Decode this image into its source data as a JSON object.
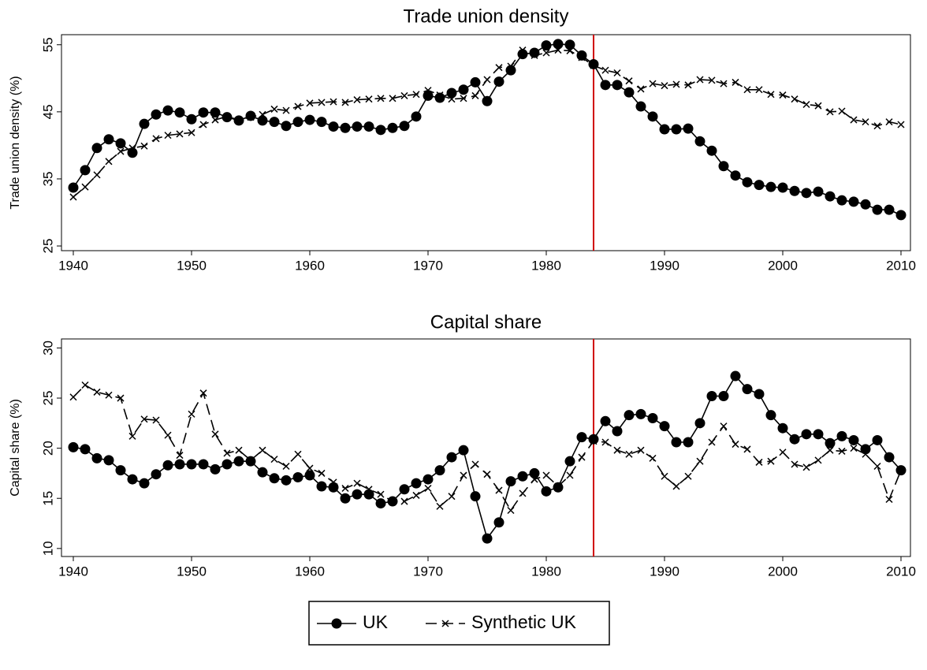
{
  "chart_data": [
    {
      "type": "line",
      "title": "Trade union density",
      "y_label": "Trade union density (%)",
      "x": [
        1940,
        1941,
        1942,
        1943,
        1944,
        1945,
        1946,
        1947,
        1948,
        1949,
        1950,
        1951,
        1952,
        1953,
        1954,
        1955,
        1956,
        1957,
        1958,
        1959,
        1960,
        1961,
        1962,
        1963,
        1964,
        1965,
        1966,
        1967,
        1968,
        1969,
        1970,
        1971,
        1972,
        1973,
        1974,
        1975,
        1976,
        1977,
        1978,
        1979,
        1980,
        1981,
        1982,
        1983,
        1984,
        1985,
        1986,
        1987,
        1988,
        1989,
        1990,
        1991,
        1992,
        1993,
        1994,
        1995,
        1996,
        1997,
        1998,
        1999,
        2000,
        2001,
        2002,
        2003,
        2004,
        2005,
        2006,
        2007,
        2008,
        2009,
        2010
      ],
      "series": [
        {
          "name": "UK",
          "color": "#000000",
          "marker": "circle",
          "dash": "solid",
          "values": [
            33.7,
            36.3,
            39.6,
            40.9,
            40.3,
            38.9,
            43.2,
            44.6,
            45.2,
            44.9,
            43.9,
            44.9,
            44.9,
            44.2,
            43.7,
            44.4,
            43.7,
            43.5,
            42.9,
            43.5,
            43.8,
            43.5,
            42.8,
            42.6,
            42.8,
            42.8,
            42.3,
            42.6,
            42.9,
            44.3,
            47.4,
            47.1,
            47.8,
            48.3,
            49.4,
            46.6,
            49.5,
            51.2,
            53.6,
            53.8,
            54.9,
            55.1,
            55.0,
            53.4,
            52.1,
            49.0,
            49.0,
            47.9,
            45.8,
            44.3,
            42.4,
            42.4,
            42.5,
            40.6,
            39.2,
            36.9,
            35.5,
            34.5,
            34.1,
            33.8,
            33.7,
            33.2,
            32.9,
            33.1,
            32.4,
            31.8,
            31.6,
            31.2,
            30.4,
            30.4,
            29.6
          ]
        },
        {
          "name": "Synthetic UK",
          "color": "#000000",
          "marker": "x",
          "dash": "dashed",
          "values": [
            32.3,
            33.8,
            35.6,
            37.6,
            39.1,
            39.6,
            39.9,
            41.0,
            41.5,
            41.7,
            41.9,
            43.1,
            43.8,
            44.3,
            43.8,
            44.2,
            44.6,
            45.4,
            45.2,
            45.8,
            46.3,
            46.4,
            46.5,
            46.4,
            46.8,
            46.9,
            47.0,
            47.0,
            47.4,
            47.6,
            48.2,
            47.5,
            46.9,
            47.0,
            47.4,
            49.8,
            51.6,
            51.8,
            54.2,
            53.4,
            53.8,
            54.2,
            54.1,
            53.1,
            51.9,
            51.2,
            50.8,
            49.6,
            48.4,
            49.2,
            48.9,
            49.1,
            49.0,
            49.8,
            49.7,
            49.2,
            49.4,
            48.3,
            48.3,
            47.6,
            47.5,
            46.9,
            46.1,
            45.9,
            45.0,
            45.1,
            43.8,
            43.5,
            42.9,
            43.5,
            43.1
          ]
        }
      ],
      "xlim": [
        1939,
        2010.8
      ],
      "xticks": [
        1940,
        1950,
        1960,
        1970,
        1980,
        1990,
        2000,
        2010
      ],
      "ylim": [
        24.3,
        56.5
      ],
      "yticks": [
        25,
        35,
        45,
        55
      ],
      "reference_line": {
        "x": 1984,
        "color": "#d00000"
      }
    },
    {
      "type": "line",
      "title": "Capital share",
      "y_label": "Capital share (%)",
      "x": [
        1940,
        1941,
        1942,
        1943,
        1944,
        1945,
        1946,
        1947,
        1948,
        1949,
        1950,
        1951,
        1952,
        1953,
        1954,
        1955,
        1956,
        1957,
        1958,
        1959,
        1960,
        1961,
        1962,
        1963,
        1964,
        1965,
        1966,
        1967,
        1968,
        1969,
        1970,
        1971,
        1972,
        1973,
        1974,
        1975,
        1976,
        1977,
        1978,
        1979,
        1980,
        1981,
        1982,
        1983,
        1984,
        1985,
        1986,
        1987,
        1988,
        1989,
        1990,
        1991,
        1992,
        1993,
        1994,
        1995,
        1996,
        1997,
        1998,
        1999,
        2000,
        2001,
        2002,
        2003,
        2004,
        2005,
        2006,
        2007,
        2008,
        2009,
        2010
      ],
      "series": [
        {
          "color": "#000000",
          "marker": "circle",
          "dash": "solid",
          "values": [
            20.1,
            19.9,
            19.0,
            18.8,
            17.8,
            16.9,
            16.5,
            17.4,
            18.3,
            18.4,
            18.4,
            18.4,
            17.9,
            18.4,
            18.7,
            18.7,
            17.6,
            17.0,
            16.8,
            17.1,
            17.3,
            16.2,
            16.1,
            15.0,
            15.4,
            15.4,
            14.5,
            14.7,
            15.9,
            16.5,
            16.9,
            17.8,
            19.1,
            19.8,
            15.2,
            11.0,
            12.6,
            16.7,
            17.2,
            17.5,
            15.7,
            16.1,
            18.7,
            21.1,
            20.9,
            22.7,
            21.7,
            23.3,
            23.4,
            23.0,
            22.2,
            20.6,
            20.6,
            22.5,
            25.2,
            25.2,
            27.2,
            25.9,
            25.4,
            23.3,
            22.0,
            20.9,
            21.4,
            21.4,
            20.5,
            21.2,
            20.8,
            19.9,
            20.8,
            19.1,
            17.8
          ]
        },
        {
          "color": "#000000",
          "marker": "x",
          "dash": "dashed",
          "values": [
            25.1,
            26.3,
            25.6,
            25.3,
            25.0,
            21.2,
            22.9,
            22.8,
            21.3,
            19.3,
            23.4,
            25.5,
            21.4,
            19.5,
            19.8,
            18.8,
            19.8,
            18.9,
            18.2,
            19.4,
            18.0,
            17.5,
            16.6,
            16.0,
            16.5,
            15.9,
            15.4,
            14.7,
            14.7,
            15.3,
            16.0,
            14.2,
            15.2,
            17.3,
            18.4,
            17.4,
            15.8,
            13.8,
            15.5,
            16.9,
            17.3,
            16.2,
            17.3,
            19.1,
            20.7,
            20.6,
            19.8,
            19.4,
            19.8,
            19.0,
            17.2,
            16.2,
            17.2,
            18.7,
            20.6,
            22.2,
            20.4,
            19.9,
            18.6,
            18.7,
            19.6,
            18.4,
            18.1,
            18.8,
            19.8,
            19.7,
            20.0,
            19.4,
            18.2,
            14.9,
            17.8
          ]
        }
      ],
      "xlim": [
        1939,
        2010.8
      ],
      "xticks": [
        1940,
        1950,
        1960,
        1970,
        1980,
        1990,
        2000,
        2010
      ],
      "ylim": [
        9.2,
        30.9
      ],
      "yticks": [
        10,
        15,
        20,
        25,
        30
      ],
      "reference_line": {
        "x": 1984,
        "color": "#d00000"
      }
    }
  ]
}
